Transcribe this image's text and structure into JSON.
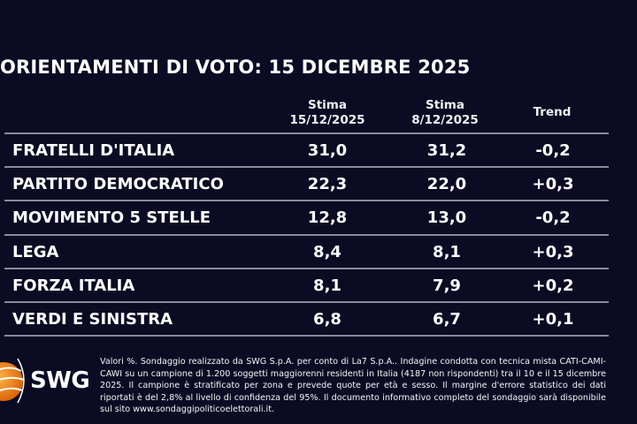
{
  "chart_data": {
    "type": "table",
    "title": "ORIENTAMENTI DI VOTO: 15 DICEMBRE 2025",
    "columns": [
      {
        "line1": "Stima",
        "line2": "15/12/2025"
      },
      {
        "line1": "Stima",
        "line2": "8/12/2025"
      },
      {
        "line1": "Trend",
        "line2": ""
      }
    ],
    "rows": [
      {
        "party": "FRATELLI D'ITALIA",
        "current": "31,0",
        "previous": "31,2",
        "trend": "-0,2"
      },
      {
        "party": "PARTITO DEMOCRATICO",
        "current": "22,3",
        "previous": "22,0",
        "trend": "+0,3"
      },
      {
        "party": "MOVIMENTO 5 STELLE",
        "current": "12,8",
        "previous": "13,0",
        "trend": "-0,2"
      },
      {
        "party": "LEGA",
        "current": "8,4",
        "previous": "8,1",
        "trend": "+0,3"
      },
      {
        "party": "FORZA ITALIA",
        "current": "8,1",
        "previous": "7,9",
        "trend": "+0,2"
      },
      {
        "party": "VERDI E SINISTRA",
        "current": "6,8",
        "previous": "6,7",
        "trend": "+0,1"
      }
    ]
  },
  "footer": {
    "logo": "SWG",
    "note": "Valori %. Sondaggio realizzato da SWG S.p.A. per conto di La7 S.p.A.. Indagine condotta con tecnica mista CATI-CAMI-CAWI su un campione di 1.200 soggetti maggiorenni residenti in Italia (4187 non rispondenti) tra il 10 e il 15 dicembre 2025. Il campione è stratificato per zona e prevede quote per età e sesso. Il margine d'errore statistico dei dati riportati è del 2,8% al livello di confidenza del 95%. Il documento informativo completo del sondaggio sarà disponibile sul sito www.sondaggipoliticoelettorali.it."
  },
  "colors": {
    "background": "#0b0b24",
    "text": "#ffffff",
    "rule": "#8a8a9a",
    "logo_orange": "#f07a10"
  }
}
